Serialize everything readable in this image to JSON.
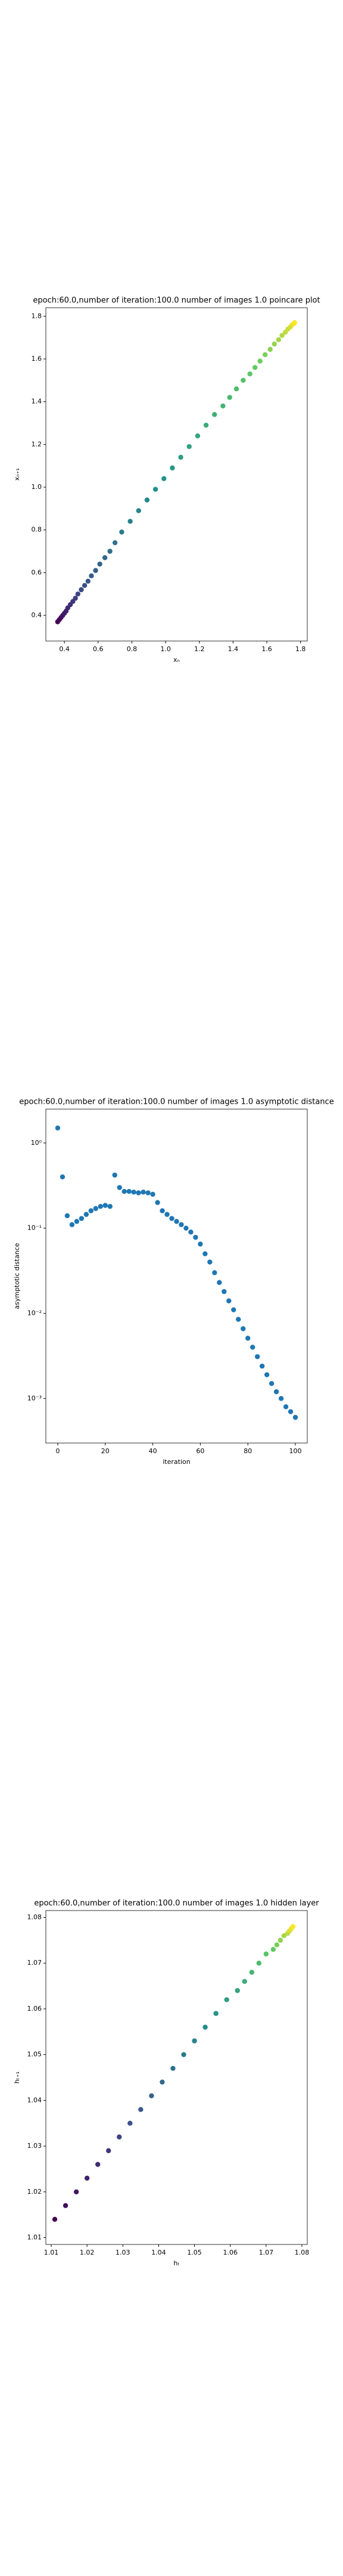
{
  "chart_data": [
    {
      "type": "scatter",
      "title": "epoch:60.0,number of iteration:100.0 number of images 1.0 poincare plot",
      "x_label": "xₙ",
      "y_label": "xₙ₊₁",
      "colormap": "viridis",
      "x": [
        0.36,
        0.37,
        0.38,
        0.39,
        0.4,
        0.41,
        0.42,
        0.435,
        0.45,
        0.465,
        0.48,
        0.5,
        0.52,
        0.54,
        0.56,
        0.585,
        0.61,
        0.64,
        0.67,
        0.7,
        0.74,
        0.79,
        0.84,
        0.89,
        0.94,
        0.99,
        1.04,
        1.09,
        1.14,
        1.19,
        1.24,
        1.29,
        1.34,
        1.38,
        1.42,
        1.46,
        1.5,
        1.53,
        1.56,
        1.59,
        1.62,
        1.645,
        1.67,
        1.69,
        1.71,
        1.725,
        1.74,
        1.75,
        1.76,
        1.765
      ],
      "values": [
        0.37,
        0.38,
        0.39,
        0.4,
        0.41,
        0.42,
        0.435,
        0.45,
        0.465,
        0.48,
        0.5,
        0.52,
        0.54,
        0.56,
        0.585,
        0.61,
        0.64,
        0.67,
        0.7,
        0.74,
        0.79,
        0.84,
        0.89,
        0.94,
        0.99,
        1.04,
        1.09,
        1.14,
        1.19,
        1.24,
        1.29,
        1.34,
        1.38,
        1.42,
        1.46,
        1.5,
        1.53,
        1.56,
        1.59,
        1.62,
        1.645,
        1.67,
        1.69,
        1.71,
        1.725,
        1.74,
        1.75,
        1.76,
        1.765,
        1.77
      ],
      "xlim": [
        0.29,
        1.84
      ],
      "ylim": [
        0.28,
        1.84
      ],
      "xticks": [
        0.4,
        0.6,
        0.8,
        {
          "value": 1,
          "label": "1.0"
        },
        1.2,
        1.4,
        1.6,
        1.8
      ],
      "yticks": [
        0.4,
        0.6,
        0.8,
        {
          "value": 1,
          "label": "1.0"
        },
        1.2,
        1.4,
        1.6,
        1.8
      ]
    },
    {
      "type": "scatter",
      "title": "epoch:60.0,number of iteration:100.0  number of images 1.0 asymptotic distance",
      "x_label": "iteration",
      "y_label": "asymptotic distance",
      "color": "#1f77b4",
      "yscale": "log",
      "x": [
        0,
        2,
        4,
        6,
        8,
        10,
        12,
        14,
        16,
        18,
        20,
        22,
        24,
        26,
        28,
        30,
        32,
        34,
        36,
        38,
        40,
        42,
        44,
        46,
        48,
        50,
        52,
        54,
        56,
        58,
        60,
        62,
        64,
        66,
        68,
        70,
        72,
        74,
        76,
        78,
        80,
        82,
        84,
        86,
        88,
        90,
        92,
        94,
        96,
        98,
        100
      ],
      "values": [
        1.5,
        0.4,
        0.14,
        0.11,
        0.12,
        0.13,
        0.145,
        0.16,
        0.17,
        0.18,
        0.185,
        0.18,
        0.42,
        0.3,
        0.27,
        0.27,
        0.265,
        0.26,
        0.265,
        0.26,
        0.25,
        0.2,
        0.16,
        0.145,
        0.13,
        0.12,
        0.11,
        0.1,
        0.09,
        0.078,
        0.065,
        0.05,
        0.04,
        0.03,
        0.023,
        0.018,
        0.014,
        0.011,
        0.0085,
        0.0066,
        0.0051,
        0.004,
        0.0031,
        0.0024,
        0.0019,
        0.0015,
        0.0012,
        0.001,
        0.0008,
        0.0007,
        0.0006
      ],
      "xlim": [
        -5,
        105
      ],
      "ylim": [
        0.0003,
        2.5
      ],
      "xticks": [
        0,
        20,
        40,
        60,
        80,
        100
      ],
      "yticks": [
        {
          "value": 1,
          "label": "10⁰"
        },
        {
          "value": 0.1,
          "label": "10⁻¹"
        },
        {
          "value": 0.01,
          "label": "10⁻²"
        },
        {
          "value": 0.001,
          "label": "10⁻³"
        }
      ]
    },
    {
      "type": "scatter",
      "title": "epoch:60.0,number of iteration:100.0  number of images 1.0 hidden layer",
      "x_label": "hₜ",
      "y_label": "hₜ₊₁",
      "colormap": "viridis",
      "x": [
        1.011,
        1.014,
        1.017,
        1.02,
        1.023,
        1.026,
        1.029,
        1.032,
        1.035,
        1.038,
        1.041,
        1.044,
        1.047,
        1.05,
        1.053,
        1.056,
        1.059,
        1.062,
        1.064,
        1.066,
        1.068,
        1.07,
        1.072,
        1.073,
        1.074,
        1.075,
        1.076,
        1.0765,
        1.077,
        1.0775
      ],
      "values": [
        1.014,
        1.017,
        1.02,
        1.023,
        1.026,
        1.029,
        1.032,
        1.035,
        1.038,
        1.041,
        1.044,
        1.047,
        1.05,
        1.053,
        1.056,
        1.059,
        1.062,
        1.064,
        1.066,
        1.068,
        1.07,
        1.072,
        1.073,
        1.074,
        1.075,
        1.076,
        1.0765,
        1.077,
        1.0775,
        1.078
      ],
      "xlim": [
        1.0085,
        1.0815
      ],
      "ylim": [
        1.0085,
        1.0815
      ],
      "xticks": [
        1.01,
        1.02,
        1.03,
        1.04,
        1.05,
        1.06,
        1.07,
        1.08
      ],
      "yticks": [
        1.01,
        1.02,
        1.03,
        1.04,
        1.05,
        1.06,
        1.07,
        1.08
      ]
    }
  ]
}
